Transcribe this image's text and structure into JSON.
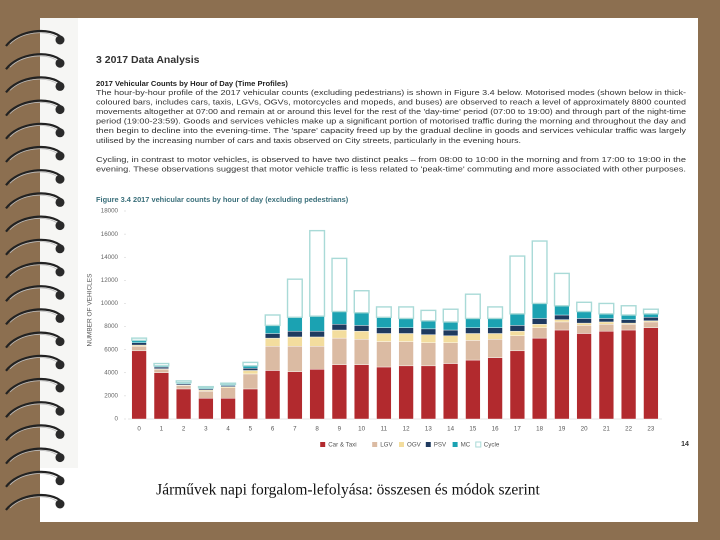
{
  "page": {
    "heading": "3 2017 Data Analysis",
    "subheading": "2017 Vehicular Counts by Hour of Day (Time Profiles)",
    "paragraphs": [
      [
        "The hour-by-hour profile of the 2017 vehicular counts (excluding pedestrians) is shown in Figure 3.4 below. Motorised modes (shown below in thick-",
        "coloured bars, includes cars, taxis, LGVs, OGVs, motorcycles and mopeds, and buses) are observed to reach a level of approximately 8800 counted",
        "movements altogether at 07:00 and remain at or around this level for the rest of the 'day-time' period (07:00 to 19:00) and through part of the night-time",
        "period (19:00-23:59). Goods and services vehicles make up a significant portion of motorised traffic during the morning and throughout the day and",
        "then begin to decline into the evening-time. The 'spare' capacity freed up by the gradual decline in goods and services vehicular traffic was largely",
        "utilised by the increasing number of cars and taxis observed on City streets, particularly in the evening hours."
      ],
      [
        "Cycling, in contrast to motor vehicles, is observed to have two distinct peaks – from 08:00 to 10:00 in the morning and from 17:00 to 19:00 in the",
        "evening. These observations suggest that motor vehicle traffic is less related to 'peak-time' commuting and more associated with other purposes."
      ]
    ],
    "figure_caption": "Figure 3.4 2017 vehicular counts by hour of day (excluding pedestrians)",
    "page_number": "14",
    "slide_caption": "Járművek napi forgalom-lefolyása: összesen és módok szerint"
  },
  "chart_data": {
    "type": "bar",
    "stacked": true,
    "ylabel": "NUMBER OF VEHICLES",
    "categories": [
      "0",
      "1",
      "2",
      "3",
      "4",
      "5",
      "6",
      "7",
      "8",
      "9",
      "10",
      "11",
      "12",
      "13",
      "14",
      "15",
      "16",
      "17",
      "18",
      "19",
      "20",
      "21",
      "22",
      "23"
    ],
    "series": [
      {
        "name": "Car & Taxi",
        "color": "#b22a2e",
        "values": [
          5900,
          4000,
          2600,
          1800,
          1800,
          2600,
          4200,
          4100,
          4300,
          4700,
          4700,
          4500,
          4600,
          4600,
          4800,
          5100,
          5300,
          5900,
          7000,
          7700,
          7400,
          7600,
          7700,
          7900
        ]
      },
      {
        "name": "LGV",
        "color": "#dbbba3",
        "values": [
          400,
          300,
          300,
          600,
          900,
          1300,
          2100,
          2200,
          2000,
          2300,
          2200,
          2200,
          2100,
          2000,
          1800,
          1700,
          1600,
          1300,
          900,
          700,
          700,
          600,
          500,
          500
        ]
      },
      {
        "name": "OGV",
        "color": "#f3dd9e",
        "values": [
          100,
          50,
          50,
          100,
          100,
          300,
          700,
          800,
          800,
          700,
          700,
          700,
          700,
          700,
          600,
          600,
          500,
          400,
          300,
          200,
          200,
          200,
          100,
          100
        ]
      },
      {
        "name": "PSV",
        "color": "#1f3a5f",
        "values": [
          200,
          150,
          100,
          100,
          100,
          200,
          400,
          500,
          500,
          500,
          500,
          500,
          500,
          500,
          500,
          500,
          500,
          500,
          500,
          400,
          400,
          300,
          300,
          300
        ]
      },
      {
        "name": "MC",
        "color": "#1ba2b2",
        "values": [
          200,
          100,
          100,
          100,
          100,
          200,
          700,
          1200,
          1300,
          1100,
          1100,
          900,
          800,
          700,
          700,
          800,
          800,
          1000,
          1300,
          800,
          600,
          400,
          400,
          300
        ]
      },
      {
        "name": "Cycle",
        "color": "#a9dad7",
        "values": [
          200,
          200,
          150,
          100,
          100,
          300,
          900,
          3300,
          7400,
          4600,
          1900,
          900,
          1000,
          900,
          1100,
          2100,
          1000,
          5000,
          5400,
          2800,
          800,
          900,
          800,
          400
        ]
      }
    ],
    "ylim": [
      0,
      18000
    ],
    "yticks": [
      0,
      2000,
      4000,
      6000,
      8000,
      10000,
      12000,
      14000,
      16000,
      18000
    ],
    "grid": false,
    "legend": "bottom"
  }
}
